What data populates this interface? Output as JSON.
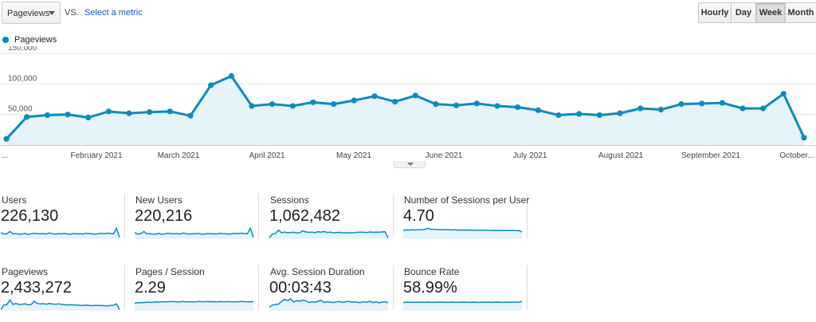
{
  "controls": {
    "metric": "Pageviews",
    "vs": "VS.",
    "select_metric": "Select a metric"
  },
  "granularity": {
    "hourly": "Hourly",
    "day": "Day",
    "week": "Week",
    "month": "Month",
    "active": "Week"
  },
  "colors": {
    "line": "#058dc7",
    "fill": "#e6f3fa",
    "grid": "#e6e6e6"
  },
  "chart_data": {
    "type": "area",
    "series": [
      {
        "name": "Pageviews",
        "values": [
          10000,
          46000,
          49000,
          50000,
          45000,
          55000,
          52000,
          54000,
          55000,
          48000,
          98000,
          113000,
          64000,
          67000,
          64000,
          70000,
          67000,
          73000,
          80000,
          71000,
          81000,
          67000,
          65000,
          68000,
          64000,
          62000,
          57000,
          49000,
          51000,
          49000,
          52000,
          60000,
          58000,
          67000,
          68000,
          69000,
          60000,
          60000,
          84000,
          12000
        ]
      }
    ],
    "x_tick_labels": [
      "...",
      "February 2021",
      "March 2021",
      "April 2021",
      "May 2021",
      "June 2021",
      "July 2021",
      "August 2021",
      "September 2021",
      "October..."
    ],
    "y_tick_labels": [
      "50,000",
      "100,000",
      "150,000"
    ],
    "ylim": [
      0,
      150000
    ],
    "grid": true,
    "legend": "top-left"
  },
  "scorecards": [
    {
      "label": "Users",
      "value": "226,130",
      "spark": [
        5,
        4,
        4.2,
        6,
        4.1,
        4.4,
        3.9,
        4,
        4.5,
        3.7,
        4.2,
        4.6,
        4.3,
        4.1,
        4.4,
        4,
        4.8,
        4.2,
        3.9,
        4.3,
        4.1,
        4.5,
        3.8,
        4,
        4.4,
        4.1,
        4.2,
        4,
        4.6,
        4.3,
        4.1,
        3.9,
        4.2,
        4.5,
        4.3,
        4.7,
        4.4,
        4.2,
        8.5,
        1.5
      ]
    },
    {
      "label": "New Users",
      "value": "220,216",
      "spark": [
        5,
        4,
        4.2,
        6,
        4.1,
        4.4,
        3.9,
        4,
        4.5,
        3.7,
        4.2,
        4.6,
        4.3,
        4.1,
        4.4,
        4,
        4.8,
        4.2,
        3.9,
        4.3,
        4.1,
        4.5,
        3.8,
        4,
        4.4,
        4.1,
        4.2,
        4,
        4.6,
        4.3,
        4.1,
        3.9,
        4.2,
        4.5,
        4.3,
        4.7,
        4.4,
        4.2,
        8.5,
        1.5
      ]
    },
    {
      "label": "Sessions",
      "value": "1,062,482",
      "spark": [
        1,
        4,
        4.4,
        7,
        5,
        5.5,
        5,
        5.2,
        5.4,
        4.8,
        5,
        6.5,
        5.6,
        5.3,
        5.5,
        5.1,
        5.8,
        5.5,
        6,
        5.2,
        5.5,
        4.9,
        5.1,
        5.3,
        5,
        4.8,
        5.2,
        4.9,
        5.1,
        5.3,
        5.5,
        5.4,
        5.2,
        5.6,
        5.3,
        5.5,
        5.4,
        5.6,
        5.8,
        1
      ]
    },
    {
      "label": "Number of Sessions per User",
      "value": "4.70",
      "spark": [
        7,
        7.2,
        7.1,
        7.3,
        7.2,
        7.4,
        7.3,
        7.5,
        8.5,
        7.8,
        7.6,
        7.5,
        7.4,
        7.5,
        7.3,
        7.4,
        7.2,
        7.3,
        7.1,
        7.2,
        7.1,
        7,
        7.2,
        7,
        6.9,
        7,
        6.8,
        7,
        6.9,
        6.8,
        6.9,
        6.8,
        6.7,
        6.9,
        6.8,
        6.7,
        6.8,
        6.6,
        6.7,
        5.5
      ]
    },
    {
      "label": "Pageviews",
      "value": "2,433,272",
      "spark": [
        1,
        4.5,
        4.8,
        8.5,
        5,
        5.8,
        5,
        5.2,
        5.5,
        4.6,
        5,
        7.5,
        5.8,
        5.4,
        5.6,
        5.2,
        5.8,
        5.4,
        5.2,
        5.5,
        5,
        4.9,
        4.6,
        4.8,
        4.5,
        4.6,
        4.3,
        4.2,
        4.5,
        4.2,
        4,
        4.3,
        4.1,
        4.2,
        4,
        3.9,
        4.2,
        4.4,
        5.5,
        1
      ]
    },
    {
      "label": "Pages / Session",
      "value": "2.29",
      "spark": [
        6,
        6.3,
        6.5,
        6.4,
        6.8,
        6.6,
        6.7,
        7,
        6.9,
        7.2,
        7,
        7.1,
        7.3,
        7.2,
        7,
        7.1,
        7.3,
        7,
        7.2,
        7.1,
        7,
        7.3,
        7.1,
        7.2,
        7.4,
        7.1,
        7.2,
        7,
        7.3,
        7.2,
        7.1,
        7.3,
        7,
        7.2,
        7.1,
        7.3,
        7.2,
        7.1,
        7,
        7.3
      ]
    },
    {
      "label": "Avg. Session Duration",
      "value": "00:03:43",
      "spark": [
        3,
        4.5,
        5,
        5.2,
        7.5,
        9,
        8,
        9.5,
        7,
        8,
        7.5,
        8.5,
        7.8,
        6.5,
        7,
        6.8,
        7.5,
        8.3,
        6.5,
        7.2,
        6.9,
        6.5,
        7,
        7.3,
        6.6,
        7,
        7.5,
        6.8,
        7,
        6.7,
        6.5,
        7.2,
        6.8,
        7.5,
        6.5,
        7,
        6.3,
        6.9,
        7.2,
        6.5
      ]
    },
    {
      "label": "Bounce Rate",
      "value": "58.99%",
      "spark": [
        6.5,
        6.8,
        6.7,
        6.6,
        6.8,
        6.7,
        6.9,
        6.6,
        6.8,
        6.7,
        6.6,
        6.8,
        6.7,
        6.9,
        6.6,
        6.7,
        6.8,
        6.6,
        6.7,
        6.8,
        6.9,
        6.7,
        6.6,
        6.8,
        6.7,
        6.6,
        6.8,
        6.7,
        6.9,
        6.6,
        6.7,
        6.8,
        6.7,
        6.6,
        6.8,
        6.7,
        6.9,
        6.8,
        6.7,
        7.5
      ]
    }
  ]
}
